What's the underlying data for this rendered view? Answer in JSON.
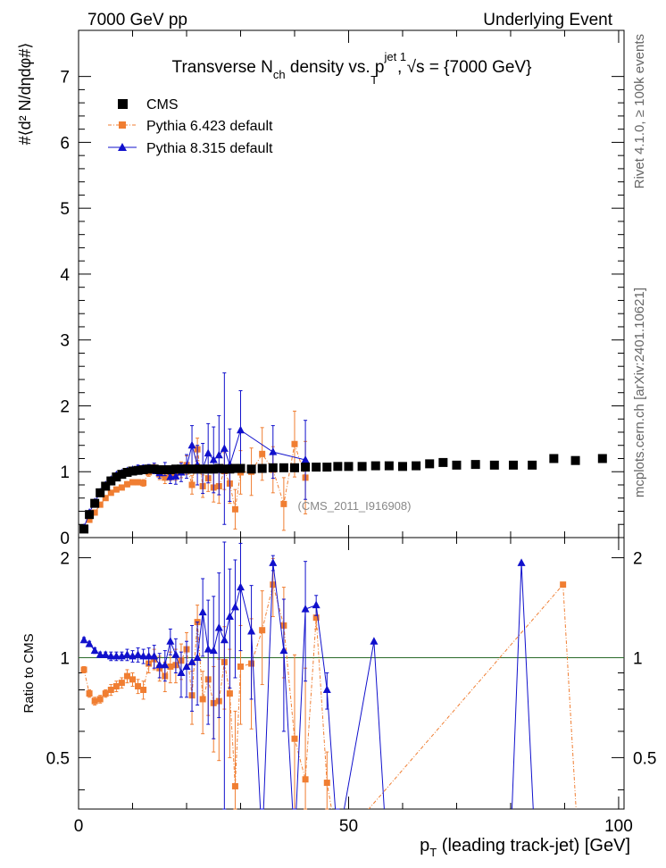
{
  "header": {
    "left": "7000 GeV pp",
    "right": "Underlying Event"
  },
  "side": {
    "top": "Rivet 4.1.0, ≥ 100k events",
    "bottom": "mcplots.cern.ch [arXiv:2401.10621]"
  },
  "chart_data": [
    {
      "type": "scatter",
      "panel": "main",
      "title": {
        "prefix": "Transverse N",
        "ch": "ch",
        "mid": " density vs. p",
        "jet": "jet 1",
        "T": "T",
        "sep": ", ",
        "sqrt": "√s",
        "energy": " = {7000 GeV}"
      },
      "ylabel": "#⟨d² N/dηdφ#⟩",
      "xlim": [
        0,
        101
      ],
      "ylim": [
        0,
        7.7
      ],
      "yticks": [
        "0",
        "1",
        "2",
        "3",
        "4",
        "5",
        "6",
        "7"
      ],
      "watermark": "(CMS_2011_I916908)",
      "legend": {
        "position": "top-left",
        "entries": [
          "CMS",
          "Pythia 6.423 default",
          "Pythia 8.315 default"
        ]
      },
      "series": [
        {
          "name": "CMS",
          "color": "#000000",
          "marker": "square",
          "x": [
            1.0,
            2.0,
            3.0,
            4.0,
            5.0,
            6.0,
            7.0,
            8.0,
            9.0,
            10.0,
            11.0,
            12.0,
            13.0,
            14.0,
            15.0,
            16.0,
            17.0,
            18.0,
            19.0,
            20.0,
            21.0,
            22.0,
            23.0,
            24.0,
            25.0,
            26.0,
            27.0,
            28.0,
            29.0,
            30.0,
            32.0,
            34.0,
            36.0,
            38.0,
            40.0,
            42.0,
            44.0,
            46.0,
            48.0,
            50.0,
            52.5,
            55.0,
            57.5,
            60.0,
            62.5,
            65.0,
            67.5,
            70.0,
            73.5,
            77.0,
            80.5,
            84.0,
            88.0,
            92.0,
            97.0
          ],
          "y": [
            0.13,
            0.35,
            0.52,
            0.68,
            0.78,
            0.86,
            0.92,
            0.96,
            0.99,
            1.01,
            1.02,
            1.03,
            1.04,
            1.04,
            1.03,
            1.03,
            1.03,
            1.04,
            1.04,
            1.04,
            1.04,
            1.04,
            1.04,
            1.04,
            1.04,
            1.05,
            1.04,
            1.04,
            1.05,
            1.05,
            1.04,
            1.05,
            1.06,
            1.06,
            1.06,
            1.07,
            1.07,
            1.07,
            1.08,
            1.08,
            1.08,
            1.09,
            1.09,
            1.08,
            1.09,
            1.12,
            1.14,
            1.1,
            1.11,
            1.1,
            1.1,
            1.1,
            1.2,
            1.17,
            1.2
          ]
        },
        {
          "name": "Pythia 6.423 default",
          "color": "#f07e32",
          "marker": "square",
          "x": [
            1.0,
            2.0,
            3.0,
            4.0,
            5.0,
            6.0,
            7.0,
            8.0,
            9.0,
            10.0,
            11.0,
            12.0,
            13.0,
            14.0,
            15.0,
            16.0,
            17.0,
            18.0,
            19.0,
            20.0,
            21.0,
            22.0,
            23.0,
            24.0,
            25.0,
            26.0,
            27.0,
            28.0,
            29.0,
            30.0,
            32.0,
            34.0,
            36.0,
            38.0,
            40.0,
            42.0
          ],
          "y": [
            0.12,
            0.27,
            0.38,
            0.5,
            0.6,
            0.68,
            0.73,
            0.76,
            0.81,
            0.84,
            0.84,
            0.83,
            0.99,
            1.04,
            0.96,
            0.91,
            0.97,
            0.98,
            1.03,
            1.1,
            0.8,
            1.34,
            0.78,
            0.9,
            0.76,
            0.78,
            1.01,
            0.82,
            0.43,
            0.99,
            1.0,
            1.27,
            1.03,
            0.51,
            1.42,
            0.91
          ],
          "err": [
            0.01,
            0.01,
            0.02,
            0.02,
            0.02,
            0.03,
            0.03,
            0.03,
            0.04,
            0.04,
            0.04,
            0.05,
            0.06,
            0.07,
            0.08,
            0.09,
            0.1,
            0.11,
            0.12,
            0.14,
            0.14,
            0.17,
            0.17,
            0.2,
            0.22,
            0.26,
            0.28,
            0.3,
            0.3,
            0.33,
            0.36,
            0.4,
            0.35,
            0.4,
            0.5,
            0.55
          ]
        },
        {
          "name": "Pythia 8.315 default",
          "color": "#1010cc",
          "marker": "triangle",
          "x": [
            1.0,
            2.0,
            3.0,
            4.0,
            5.0,
            6.0,
            7.0,
            8.0,
            9.0,
            10.0,
            11.0,
            12.0,
            13.0,
            14.0,
            15.0,
            16.0,
            17.0,
            18.0,
            19.0,
            20.0,
            21.0,
            22.0,
            23.0,
            24.0,
            25.0,
            26.0,
            27.0,
            28.0,
            30.0,
            36.0,
            42.0
          ],
          "y": [
            0.15,
            0.38,
            0.54,
            0.69,
            0.8,
            0.88,
            0.95,
            0.98,
            1.01,
            1.03,
            1.05,
            1.05,
            1.05,
            1.05,
            0.98,
            1.04,
            0.92,
            0.93,
            0.99,
            1.08,
            1.4,
            1.1,
            1.05,
            1.28,
            1.18,
            1.25,
            1.35,
            1.1,
            1.63,
            1.3,
            1.18
          ],
          "err": [
            0.01,
            0.01,
            0.02,
            0.02,
            0.02,
            0.03,
            0.03,
            0.03,
            0.04,
            0.04,
            0.05,
            0.05,
            0.06,
            0.08,
            0.08,
            0.1,
            0.1,
            0.12,
            0.14,
            0.18,
            0.3,
            0.3,
            0.38,
            0.45,
            0.5,
            0.6,
            1.15,
            0.55,
            0.6,
            0.4,
            0.6
          ]
        }
      ]
    },
    {
      "type": "line",
      "panel": "ratio",
      "ylabel": "Ratio to CMS",
      "xlabel_prefix": "p",
      "xlabel_sub": "T",
      "xlabel_rest": " (leading track-jet) [GeV]",
      "xlim": [
        0,
        101
      ],
      "ylim": [
        0.35,
        2.3
      ],
      "yticks": [
        "0.5",
        "1",
        "2"
      ],
      "xticks": [
        "0",
        "50",
        "100"
      ],
      "reference": 1.0,
      "series": [
        {
          "name": "Pythia 6.423 default",
          "color": "#f07e32",
          "marker": "square",
          "x": [
            1.0,
            2.0,
            3.0,
            4.0,
            5.0,
            6.0,
            7.0,
            8.0,
            9.0,
            10.0,
            11.0,
            12.0,
            13.0,
            14.0,
            15.0,
            16.0,
            17.0,
            18.0,
            19.0,
            20.0,
            21.0,
            22.0,
            23.0,
            24.0,
            25.0,
            26.0,
            27.0,
            28.0,
            29.0,
            30.0,
            32.0,
            34.0,
            36.0,
            38.0,
            40.0,
            42.0,
            44.0,
            46.0,
            48.0,
            89.7,
            92.5
          ],
          "y": [
            0.92,
            0.78,
            0.74,
            0.75,
            0.78,
            0.8,
            0.82,
            0.84,
            0.88,
            0.86,
            0.82,
            0.8,
            0.96,
            0.99,
            0.93,
            0.88,
            0.94,
            0.95,
            0.98,
            1.06,
            0.77,
            1.28,
            0.75,
            0.86,
            0.73,
            0.74,
            0.97,
            0.78,
            0.41,
            0.94,
            0.96,
            1.21,
            1.66,
            1.25,
            0.57,
            0.43,
            1.32,
            0.42,
            0.25,
            1.66,
            0.2
          ],
          "err": [
            0.02,
            0.02,
            0.02,
            0.02,
            0.02,
            0.03,
            0.03,
            0.03,
            0.04,
            0.04,
            0.04,
            0.05,
            0.06,
            0.07,
            0.08,
            0.09,
            0.1,
            0.11,
            0.12,
            0.13,
            0.14,
            0.16,
            0.16,
            0.19,
            0.21,
            0.25,
            0.27,
            0.28,
            0.28,
            0.31,
            0.35,
            0.38,
            0.33,
            0.38,
            0.45,
            0.5,
            0.1,
            0.1,
            0.1,
            0.0,
            0.0
          ]
        },
        {
          "name": "Pythia 8.315 default",
          "color": "#1010cc",
          "marker": "triangle",
          "x": [
            1.0,
            2.0,
            3.0,
            4.0,
            5.0,
            6.0,
            7.0,
            8.0,
            9.0,
            10.0,
            11.0,
            12.0,
            13.0,
            14.0,
            15.0,
            16.0,
            17.0,
            18.0,
            19.0,
            20.0,
            21.0,
            22.0,
            23.0,
            24.0,
            25.0,
            26.0,
            27.0,
            28.0,
            29.0,
            30.0,
            32.0,
            34.0,
            36.0,
            38.0,
            40.0,
            42.0,
            44.0,
            46.0,
            48.0,
            54.7,
            57.0,
            80.0,
            82.0,
            84.5
          ],
          "y": [
            1.13,
            1.1,
            1.05,
            1.02,
            1.02,
            1.01,
            1.01,
            1.01,
            1.02,
            1.01,
            1.02,
            1.01,
            1.01,
            1.01,
            0.95,
            0.95,
            1.12,
            1.02,
            0.9,
            0.94,
            0.97,
            1.0,
            1.37,
            1.06,
            1.05,
            1.23,
            1.13,
            1.33,
            1.42,
            1.63,
            1.2,
            0.2,
            1.93,
            1.05,
            0.2,
            1.4,
            1.44,
            0.8,
            0.2,
            1.12,
            0.2,
            0.2,
            1.93,
            0.2
          ],
          "err": [
            0.02,
            0.02,
            0.02,
            0.02,
            0.02,
            0.03,
            0.03,
            0.03,
            0.04,
            0.04,
            0.05,
            0.05,
            0.06,
            0.08,
            0.08,
            0.1,
            0.1,
            0.12,
            0.14,
            0.18,
            0.28,
            0.28,
            0.36,
            0.43,
            0.48,
            0.57,
            1.1,
            0.52,
            0.55,
            0.58,
            0.45,
            0.1,
            0.1,
            0.45,
            0.1,
            0.55,
            0.1,
            0.1,
            0.1,
            0.0,
            0.0,
            0.0,
            0.0,
            0.0
          ]
        }
      ]
    }
  ]
}
